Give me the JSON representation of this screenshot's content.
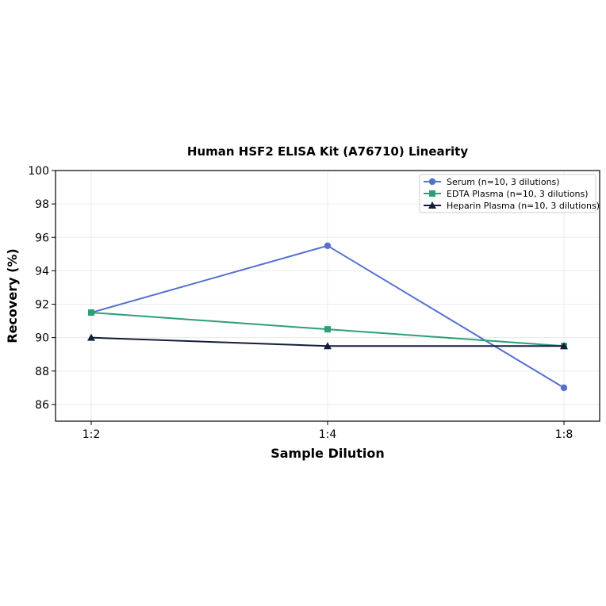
{
  "chart_data": {
    "type": "line",
    "title": "Human HSF2 ELISA Kit (A76710) Linearity",
    "xlabel": "Sample Dilution",
    "ylabel": "Recovery (%)",
    "categories": [
      "1:2",
      "1:4",
      "1:8"
    ],
    "ylim": [
      85,
      100
    ],
    "yticks": [
      86,
      88,
      90,
      92,
      94,
      96,
      98,
      100
    ],
    "grid": true,
    "legend_position": "top-right",
    "series": [
      {
        "name": "Serum (n=10, 3 dilutions)",
        "values": [
          91.5,
          95.5,
          87.0
        ],
        "color": "#5470d0",
        "marker": "circle"
      },
      {
        "name": "EDTA Plasma (n=10, 3 dilutions)",
        "values": [
          91.5,
          90.5,
          89.5
        ],
        "color": "#2e9e78",
        "marker": "square"
      },
      {
        "name": "Heparin Plasma (n=10, 3 dilutions)",
        "values": [
          90.0,
          89.5,
          89.5
        ],
        "color": "#141d3a",
        "marker": "triangle"
      }
    ]
  }
}
